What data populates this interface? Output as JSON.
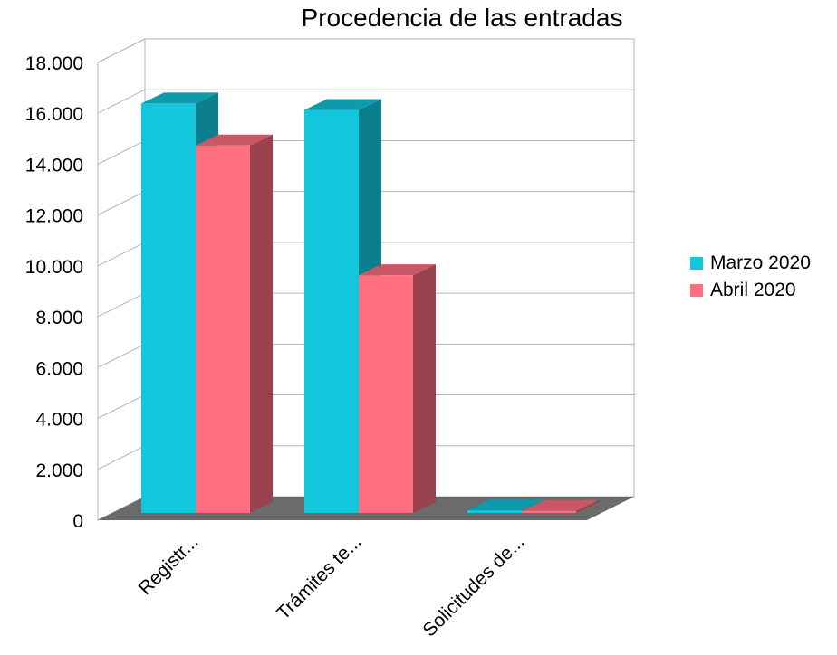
{
  "chart_data": {
    "type": "bar",
    "title": "Procedencia de las entradas",
    "categories": [
      "Registr...",
      "Trámites te...",
      "Solicitudes de..."
    ],
    "series": [
      {
        "name": "Marzo 2020",
        "values": [
          16100,
          15850,
          100
        ],
        "color": "#13c6dc",
        "side_color": "#0b7f8e",
        "top_color": "#0e9aab"
      },
      {
        "name": "Abril 2020",
        "values": [
          14450,
          9350,
          80
        ],
        "color": "#ff6f7f",
        "side_color": "#98434d",
        "top_color": "#c85866"
      }
    ],
    "y_ticks": [
      "0",
      "2.000",
      "4.000",
      "6.000",
      "8.000",
      "10.000",
      "12.000",
      "14.000",
      "16.000",
      "18.000"
    ],
    "ylim": [
      0,
      18000
    ],
    "grid": true,
    "legend_position": "right",
    "xlabel": "",
    "ylabel": ""
  }
}
